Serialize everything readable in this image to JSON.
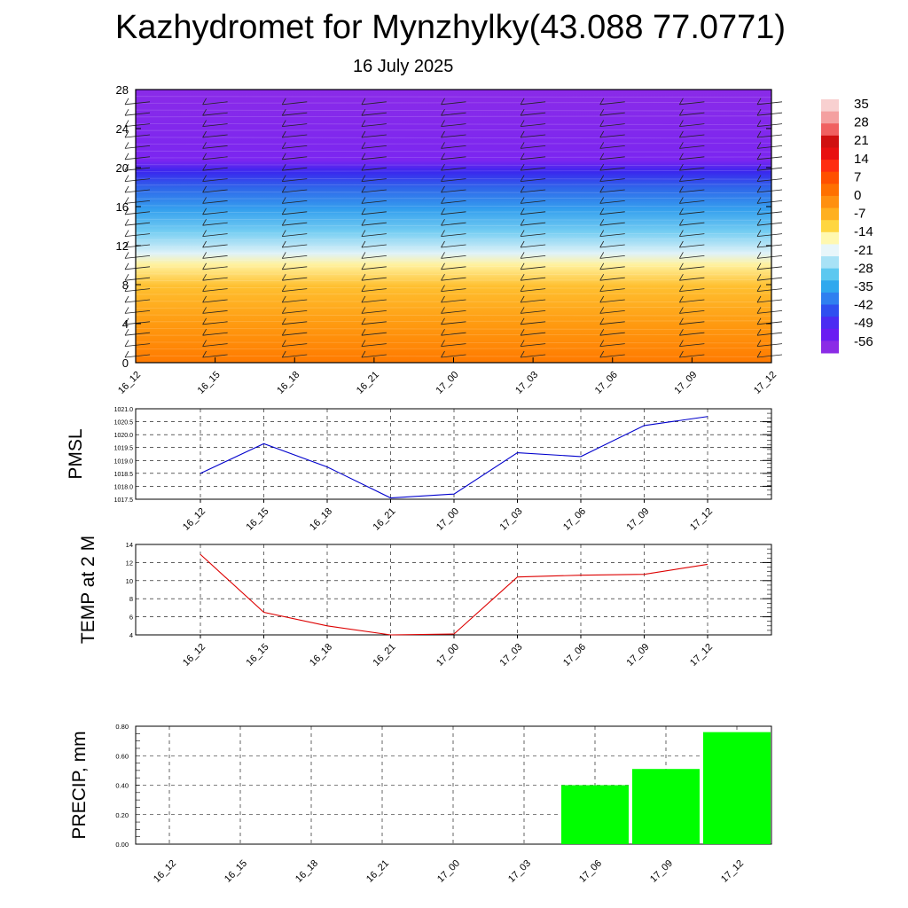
{
  "header": {
    "title": "Kazhydromet for Mynzhylky(43.088 77.0771)",
    "subtitle": "16 July 2025"
  },
  "colors": {
    "pmsl_line": "#0000cc",
    "temp_line": "#dd0000",
    "precip_bar": "#00ff00",
    "colorbar": [
      "#8b2be6",
      "#6a1cf2",
      "#4b2cf2",
      "#2f4ff0",
      "#2f7ff0",
      "#2fa8ee",
      "#5cc8f0",
      "#a8e2f6",
      "#e8f6fa",
      "#fff8b0",
      "#ffd640",
      "#ffb020",
      "#ff9010",
      "#ff7000",
      "#ff5000",
      "#ff2d10",
      "#e81010",
      "#d01010",
      "#f06060",
      "#f4a0a0",
      "#f8d0d0"
    ]
  },
  "chart_data": [
    {
      "type": "heatmap",
      "name": "cross-section",
      "x_ticks": [
        "16_12",
        "16_15",
        "16_18",
        "16_21",
        "17_00",
        "17_03",
        "17_06",
        "17_09",
        "17_12"
      ],
      "y_ticks": [
        0,
        4,
        8,
        12,
        16,
        20,
        24,
        28
      ],
      "ylim": [
        0,
        28
      ],
      "colorbar_labels": [
        "35",
        "28",
        "21",
        "14",
        "7",
        "0",
        "-7",
        "-14",
        "-21",
        "-28",
        "-35",
        "-42",
        "-49",
        "-56"
      ]
    },
    {
      "type": "line",
      "ylabel": "PMSL",
      "categories": [
        "16_12",
        "16_15",
        "16_18",
        "16_21",
        "17_00",
        "17_03",
        "17_06",
        "17_09",
        "17_12"
      ],
      "values": [
        1018.5,
        1019.65,
        1018.75,
        1017.55,
        1017.7,
        1019.3,
        1019.15,
        1020.35,
        1020.7
      ],
      "ylim": [
        1017.5,
        1021.0
      ],
      "y_ticks": [
        "1017.5",
        "1018.0",
        "1018.5",
        "1019.0",
        "1019.5",
        "1020.0",
        "1020.5",
        "1021.0"
      ]
    },
    {
      "type": "line",
      "ylabel": "TEMP at 2 M",
      "categories": [
        "16_12",
        "16_15",
        "16_18",
        "16_21",
        "17_00",
        "17_03",
        "17_06",
        "17_09",
        "17_12"
      ],
      "values": [
        12.9,
        6.5,
        5.0,
        4.0,
        4.1,
        10.4,
        10.6,
        10.7,
        11.8
      ],
      "ylim": [
        4,
        14
      ],
      "y_ticks": [
        "4",
        "6",
        "8",
        "10",
        "12",
        "14"
      ]
    },
    {
      "type": "bar",
      "ylabel": "PRECIP, mm",
      "categories": [
        "16_12",
        "16_15",
        "16_18",
        "16_21",
        "17_00",
        "17_03",
        "17_06",
        "17_09",
        "17_12"
      ],
      "values": [
        0,
        0,
        0,
        0,
        0,
        0,
        0.4,
        0.51,
        0.76
      ],
      "ylim": [
        0,
        0.8
      ],
      "y_ticks": [
        "0.00",
        "0.20",
        "0.40",
        "0.60",
        "0.80"
      ]
    }
  ]
}
